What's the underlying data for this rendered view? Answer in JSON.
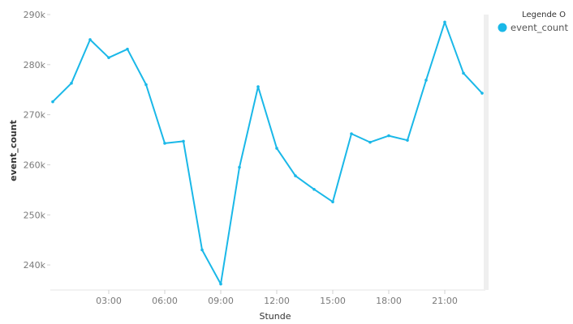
{
  "chart_data": {
    "type": "line",
    "xlabel": "Stunde",
    "ylabel": "event_count",
    "x": [
      "00:00",
      "01:00",
      "02:00",
      "03:00",
      "04:00",
      "05:00",
      "06:00",
      "07:00",
      "08:00",
      "09:00",
      "10:00",
      "11:00",
      "12:00",
      "13:00",
      "14:00",
      "15:00",
      "16:00",
      "17:00",
      "18:00",
      "19:00",
      "20:00",
      "21:00",
      "22:00",
      "23:00"
    ],
    "x_tick_labels": [
      "03:00",
      "06:00",
      "09:00",
      "12:00",
      "15:00",
      "18:00",
      "21:00"
    ],
    "y_tick_labels": [
      "240k",
      "250k",
      "260k",
      "270k",
      "280k",
      "290k"
    ],
    "ylim": [
      235000,
      290000
    ],
    "grid": false,
    "legend": {
      "title": "Legende O",
      "placement": "top-right"
    },
    "series": [
      {
        "name": "event_count",
        "color": "#1ab8e8",
        "values": [
          272600,
          276300,
          285000,
          281400,
          283100,
          276000,
          264300,
          264700,
          243000,
          236200,
          259500,
          275600,
          263300,
          257800,
          255100,
          252600,
          266200,
          264500,
          265800,
          264900,
          276900,
          288500,
          278300,
          274300
        ]
      }
    ]
  }
}
